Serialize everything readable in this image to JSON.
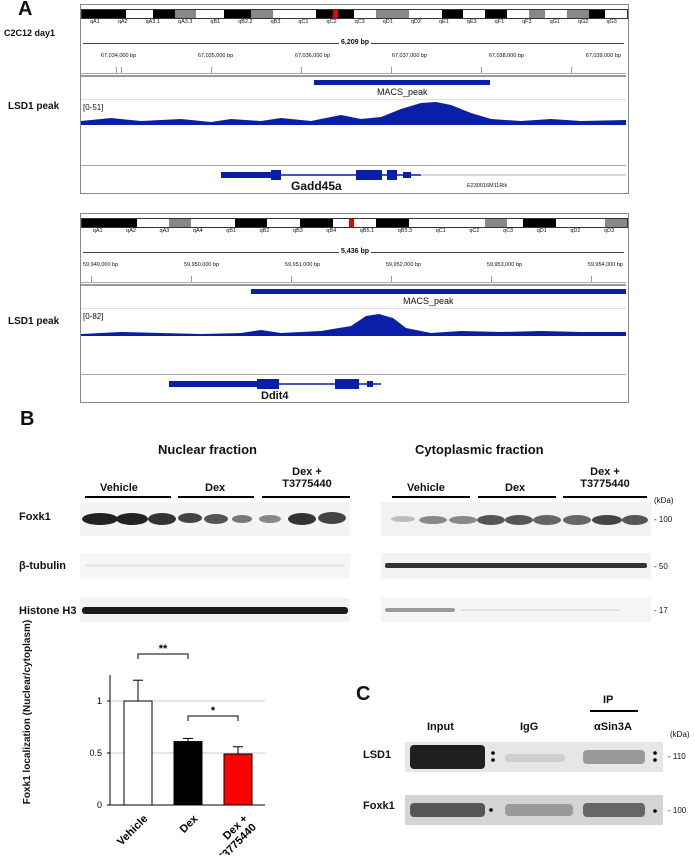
{
  "panelA": {
    "letter": "A",
    "condition": "C2C12 day1",
    "tracks": [
      {
        "bands": [
          "qA1",
          "qA2",
          "qA3.1",
          "qA3.3",
          "qB1",
          "qB2.2",
          "qB3",
          "qC1",
          "qC2",
          "qC3",
          "qD1",
          "qD2",
          "qE1",
          "qE3",
          "qF1",
          "qF3",
          "qG1",
          "qG2",
          "qG3"
        ],
        "span": "6,209 bp",
        "coords": [
          "67,034,000 bp",
          "67,035,000 bp",
          "67,036,000 bp",
          "67,037,000 bp",
          "67,038,000 bp",
          "67,039,000 bp"
        ],
        "peak_label": "MACS_peak",
        "track_name": "LSD1 peak",
        "range": "[0-51]",
        "gene": "Gadd45a",
        "neighbor_gene": "E230016M11Rik"
      },
      {
        "bands": [
          "qA1",
          "qA2",
          "qA3",
          "qA4",
          "qB1",
          "qB2",
          "qB3",
          "qB4",
          "qB5.1",
          "qB5.3",
          "qC1",
          "qC2",
          "qC3",
          "qD1",
          "qD2",
          "qD3"
        ],
        "span": "5,436 bp",
        "coords": [
          "59,949,000 bp",
          "59,950,000 bp",
          "59,951,000 bp",
          "59,952,000 bp",
          "59,953,000 bp",
          "59,954,000 bp"
        ],
        "peak_label": "MACS_peak",
        "track_name": "LSD1 peak",
        "range": "[0-82]",
        "gene": "Ddit4"
      }
    ]
  },
  "panelB": {
    "letter": "B",
    "nuclear_title": "Nuclear fraction",
    "cyto_title": "Cytoplasmic fraction",
    "groups": [
      "Vehicle",
      "Dex",
      "Dex +\nT3775440"
    ],
    "kda_header": "(kDa)",
    "rows": [
      {
        "label": "Foxk1",
        "kda": "100"
      },
      {
        "label": "β-tubulin",
        "kda": "50"
      },
      {
        "label": "Histone H3",
        "kda": "17"
      }
    ]
  },
  "chart_data": {
    "type": "bar",
    "categories": [
      "Vehicle",
      "Dex",
      "Dex + T3775440"
    ],
    "values": [
      1.0,
      0.61,
      0.49
    ],
    "errors": [
      0.2,
      0.03,
      0.07
    ],
    "colors": [
      "#ffffff",
      "#000000",
      "#ff0000"
    ],
    "ylabel": "Foxk1 localization (Nuclear/cytoplasm)",
    "ylim": [
      0,
      1.25
    ],
    "yticks": [
      "0",
      "0.5",
      "1"
    ],
    "significance": [
      "**",
      "**",
      "*"
    ]
  },
  "panelC": {
    "letter": "C",
    "ip_header": "IP",
    "columns": [
      "Input",
      "IgG",
      "αSin3A"
    ],
    "kda_header": "(kDa)",
    "rows": [
      {
        "label": "LSD1",
        "kda": "110"
      },
      {
        "label": "Foxk1",
        "kda": "100"
      }
    ]
  }
}
